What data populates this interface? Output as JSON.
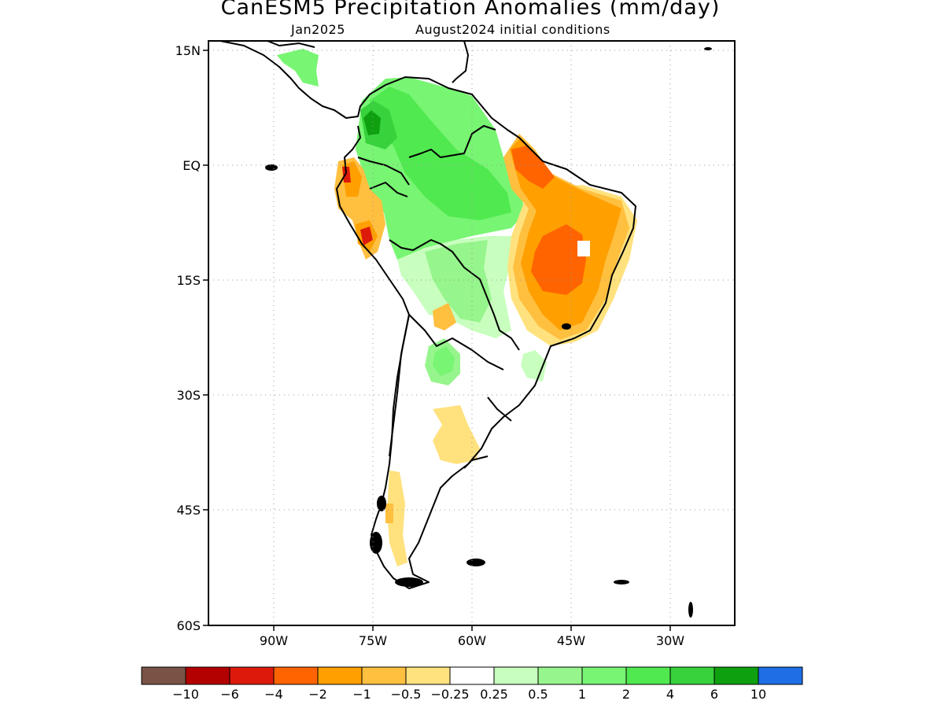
{
  "title": "CanESM5 Precipitation Anomalies (mm/day)",
  "subtitle_left": "Jan2025",
  "subtitle_right": "August2024 initial conditions",
  "axes": {
    "lat_labels": [
      "15N",
      "EQ",
      "15S",
      "30S",
      "45S",
      "60S"
    ],
    "lon_labels": [
      "90W",
      "75W",
      "60W",
      "45W",
      "30W"
    ]
  },
  "colorbar": {
    "labels": [
      "−10",
      "−6",
      "−4",
      "−2",
      "−1",
      "−0.5",
      "−0.25",
      "0.25",
      "0.5",
      "1",
      "2",
      "4",
      "6",
      "10"
    ],
    "colors": [
      "#7a5246",
      "#b30000",
      "#dd1a0a",
      "#ff6400",
      "#ff9f00",
      "#ffbf3f",
      "#ffe27e",
      "#ffffff",
      "#c8ffbe",
      "#96f58c",
      "#78f573",
      "#50e950",
      "#37d23c",
      "#0fa00f",
      "#1e6ee6"
    ]
  }
}
